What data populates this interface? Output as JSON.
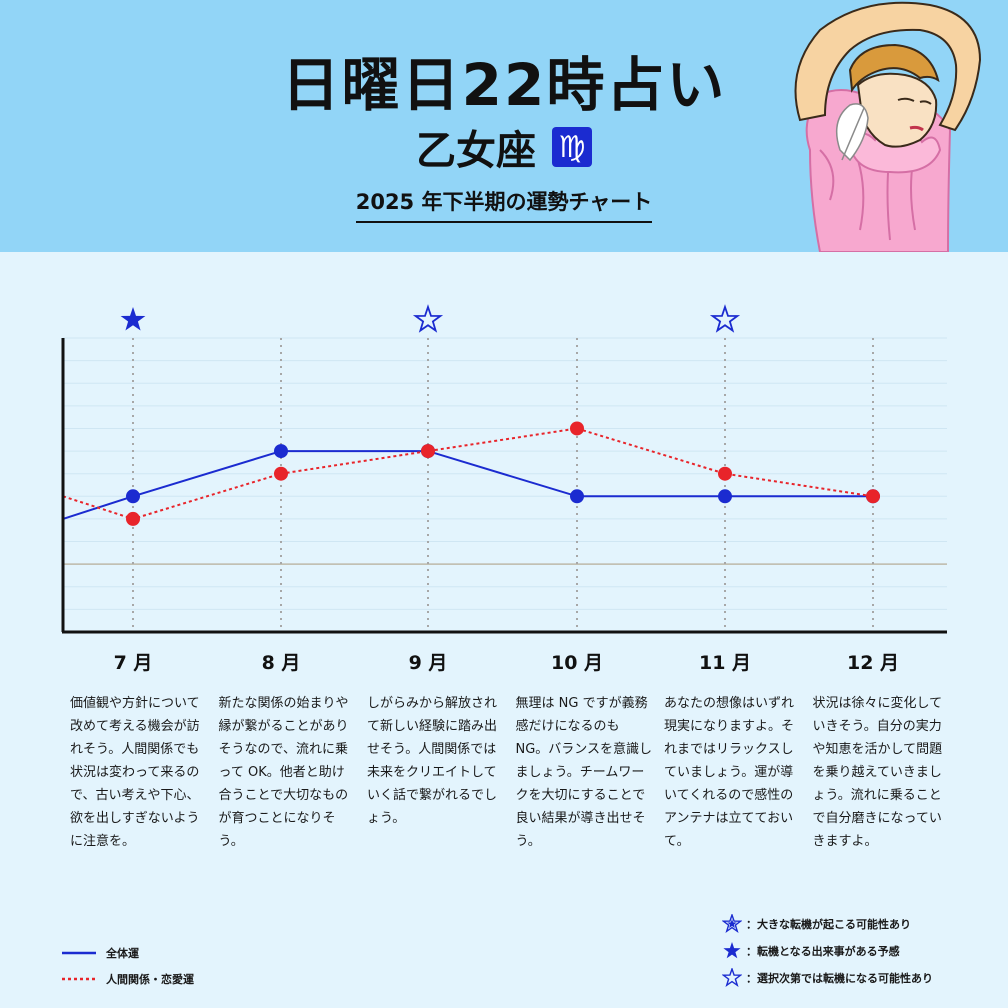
{
  "header": {
    "title": "日曜日22時占い",
    "sign_name": "乙女座",
    "sign_symbol": "♍",
    "subtitle": "2025 年下半期の運勢チャート"
  },
  "colors": {
    "header_bg": "#92d5f7",
    "page_bg": "#e3f4fd",
    "overall_line": "#1b2bd0",
    "relation_line": "#e8242a",
    "star": "#1b2bd0"
  },
  "chart_data": {
    "type": "line",
    "title": "2025 年下半期の運勢チャート",
    "categories": [
      "7 月",
      "8 月",
      "9 月",
      "10 月",
      "11 月",
      "12 月"
    ],
    "ylim": [
      -3,
      10
    ],
    "baseline": 0,
    "grid": "horizontal lines with dotted vertical month guides",
    "series": [
      {
        "name": "全体運",
        "style": "solid",
        "color": "#1b2bd0",
        "values": [
          3,
          5,
          5,
          3,
          3,
          3
        ],
        "start_edge_value": 2
      },
      {
        "name": "人間関係・恋愛運",
        "style": "dotted",
        "color": "#e8242a",
        "values": [
          2,
          4,
          5,
          6,
          4,
          3
        ],
        "start_edge_value": 3
      }
    ],
    "markers": [
      {
        "month": "7 月",
        "kind": "filled_star"
      },
      {
        "month": "9 月",
        "kind": "outline_star"
      },
      {
        "month": "11 月",
        "kind": "outline_star"
      }
    ]
  },
  "descriptions": [
    "価値観や方針について改めて考える機会が訪れそう。人間関係でも状況は変わって来るので、古い考えや下心、欲を出しすぎないように注意を。",
    "新たな関係の始まりや縁が繋がることがありそうなので、流れに乗って OK。他者と助け合うことで大切なものが育つことになりそう。",
    "しがらみから解放されて新しい経験に踏み出せそう。人間関係では未来をクリエイトしていく話で繋がれるでしょう。",
    "無理は NG ですが義務感だけになるのも NG。バランスを意識しましょう。チームワークを大切にすることで良い結果が導き出せそう。",
    "あなたの想像はいずれ現実になりますよ。それまではリラックスしていましょう。運が導いてくれるので感性のアンテナは立てておいて。",
    "状況は徐々に変化していきそう。自分の実力や知恵を活かして問題を乗り越えていきましょう。流れに乗ることで自分磨きになっていきますよ。"
  ],
  "legend": {
    "overall": "全体運",
    "relation": "人間関係・恋愛運"
  },
  "star_legend": {
    "major": "：大きな転機が起こる可能性あり",
    "event": "：転機となる出来事がある予感",
    "choice": "：選択次第では転機になる可能性あり"
  }
}
